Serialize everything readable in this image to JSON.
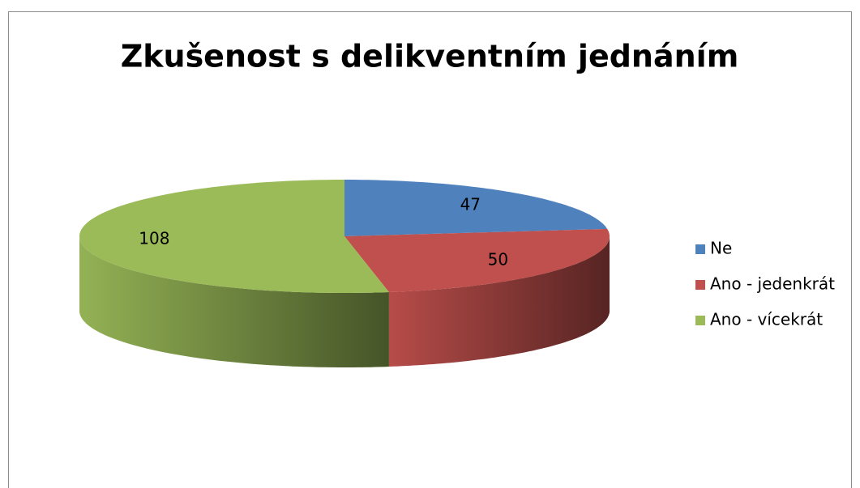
{
  "chart_data": {
    "type": "pie3d",
    "title": "Zkušenost s delikventním jednáním",
    "categories": [
      "Ne",
      "Ano - jedenkrát",
      "Ano - vícekrát"
    ],
    "values": [
      47,
      50,
      108
    ],
    "colors": [
      "#4f81bd",
      "#c0504d",
      "#9bbb59"
    ],
    "legend": "right"
  }
}
